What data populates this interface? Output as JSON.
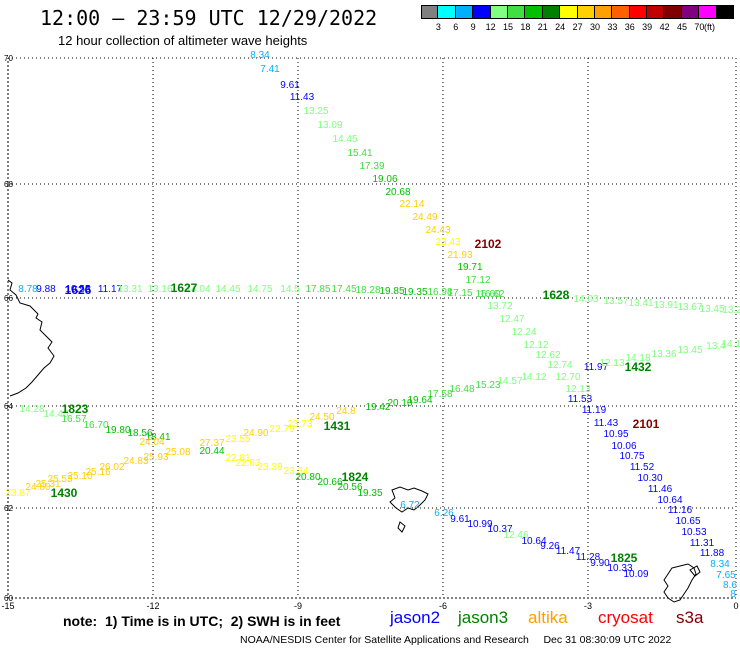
{
  "header": {
    "title": "12:00 – 23:59 UTC 12/29/2022",
    "subtitle": "12 hour collection of altimeter wave heights"
  },
  "colorbar": {
    "unit": "(ft)",
    "colors": [
      "#808080",
      "#00ffff",
      "#00b0ff",
      "#0000ff",
      "#80ff80",
      "#40e040",
      "#00c000",
      "#008000",
      "#ffff00",
      "#ffd000",
      "#ffa000",
      "#ff6000",
      "#ff0000",
      "#c00000",
      "#800000",
      "#800080",
      "#ff00ff",
      "#000000"
    ],
    "labels": [
      "3",
      "6",
      "9",
      "12",
      "15",
      "18",
      "21",
      "24",
      "27",
      "30",
      "33",
      "36",
      "39",
      "42",
      "45",
      "70"
    ]
  },
  "axes": {
    "lat_labels": [
      "70",
      "68",
      "66",
      "64",
      "62",
      "60"
    ],
    "lon_labels": [
      "-15",
      "-12",
      "-9",
      "-6",
      "-3",
      "0"
    ]
  },
  "tracks": [
    {
      "id": "t2102",
      "time": "2102",
      "time_color": "#800000",
      "points": [
        {
          "v": "8.34",
          "c": "#00b0ff"
        },
        {
          "v": "7.41",
          "c": "#00b0ff"
        },
        {
          "v": "9.61",
          "c": "#0000ff"
        },
        {
          "v": "11.43",
          "c": "#0000ff"
        },
        {
          "v": "13.25",
          "c": "#80ff80"
        },
        {
          "v": "13.09",
          "c": "#80ff80"
        },
        {
          "v": "14.45",
          "c": "#80ff80"
        },
        {
          "v": "15.41",
          "c": "#40e040"
        },
        {
          "v": "17.39",
          "c": "#40e040"
        },
        {
          "v": "19.06",
          "c": "#00c000"
        },
        {
          "v": "20.68",
          "c": "#00c000"
        },
        {
          "v": "22.14",
          "c": "#ffd000"
        },
        {
          "v": "24.49",
          "c": "#ffd000"
        },
        {
          "v": "24.43",
          "c": "#ffd000"
        },
        {
          "v": "23.43",
          "c": "#ffff00"
        },
        {
          "v": "21.93",
          "c": "#ffd000"
        },
        {
          "v": "19.71",
          "c": "#00c000"
        },
        {
          "v": "17.12",
          "c": "#40e040"
        },
        {
          "v": "16.60",
          "c": "#40e040"
        },
        {
          "v": "13.72",
          "c": "#80ff80"
        },
        {
          "v": "12.47",
          "c": "#80ff80"
        },
        {
          "v": "12.24",
          "c": "#80ff80"
        },
        {
          "v": "12.12",
          "c": "#80ff80"
        },
        {
          "v": "12.62",
          "c": "#80ff80"
        },
        {
          "v": "12.74",
          "c": "#80ff80"
        },
        {
          "v": "12.70",
          "c": "#80ff80"
        },
        {
          "v": "12.13",
          "c": "#80ff80"
        }
      ]
    },
    {
      "id": "t2101",
      "time": "2101",
      "time_color": "#800000",
      "points": [
        {
          "v": "11.53",
          "c": "#0000ff"
        },
        {
          "v": "11.19",
          "c": "#0000ff"
        },
        {
          "v": "11.43",
          "c": "#0000ff"
        },
        {
          "v": "10.95",
          "c": "#0000ff"
        },
        {
          "v": "10.06",
          "c": "#0000ff"
        },
        {
          "v": "10.75",
          "c": "#0000ff"
        },
        {
          "v": "11.52",
          "c": "#0000ff"
        },
        {
          "v": "10.30",
          "c": "#0000ff"
        },
        {
          "v": "11.46",
          "c": "#0000ff"
        },
        {
          "v": "10.64",
          "c": "#0000ff"
        },
        {
          "v": "11.16",
          "c": "#0000ff"
        },
        {
          "v": "10.65",
          "c": "#0000ff"
        },
        {
          "v": "10.53",
          "c": "#0000ff"
        },
        {
          "v": "11.31",
          "c": "#0000ff"
        },
        {
          "v": "11.88",
          "c": "#0000ff"
        },
        {
          "v": "8.34",
          "c": "#00b0ff"
        },
        {
          "v": "7.65",
          "c": "#00b0ff"
        },
        {
          "v": "8.6",
          "c": "#00b0ff"
        },
        {
          "v": "8",
          "c": "#00b0ff"
        }
      ]
    },
    {
      "id": "t1626",
      "time": "1626",
      "time_color": "#0000ff",
      "points": [
        {
          "v": "8.78",
          "c": "#00b0ff"
        },
        {
          "v": "9.88",
          "c": "#0000ff"
        },
        {
          "v": "10.55",
          "c": "#0000ff"
        },
        {
          "v": "11.17",
          "c": "#0000ff"
        }
      ]
    },
    {
      "id": "t1627",
      "time": "1627",
      "time_color": "#008000",
      "points": [
        {
          "v": "13.31",
          "c": "#80ff80"
        },
        {
          "v": "13.16",
          "c": "#80ff80"
        },
        {
          "v": "14.04",
          "c": "#80ff80"
        },
        {
          "v": "14.45",
          "c": "#80ff80"
        },
        {
          "v": "14.75",
          "c": "#80ff80"
        },
        {
          "v": "14.5",
          "c": "#80ff80"
        },
        {
          "v": "17.85",
          "c": "#40e040"
        },
        {
          "v": "17.45",
          "c": "#40e040"
        },
        {
          "v": "18.28",
          "c": "#40e040"
        },
        {
          "v": "19.85",
          "c": "#00c000"
        },
        {
          "v": "19.35",
          "c": "#00c000"
        },
        {
          "v": "16.98",
          "c": "#40e040"
        },
        {
          "v": "17.15",
          "c": "#40e040"
        },
        {
          "v": "16.62",
          "c": "#40e040"
        }
      ]
    },
    {
      "id": "t1628",
      "time": "1628",
      "time_color": "#008000",
      "points": [
        {
          "v": "14.03",
          "c": "#80ff80"
        },
        {
          "v": "13.57",
          "c": "#80ff80"
        },
        {
          "v": "13.41",
          "c": "#80ff80"
        },
        {
          "v": "13.91",
          "c": "#80ff80"
        },
        {
          "v": "13.67",
          "c": "#80ff80"
        },
        {
          "v": "13.45",
          "c": "#80ff80"
        },
        {
          "v": "13.2",
          "c": "#80ff80"
        }
      ]
    },
    {
      "id": "t1432",
      "time": "1432",
      "time_color": "#008000",
      "points": [
        {
          "v": "11.97",
          "c": "#0000ff"
        },
        {
          "v": "12.13",
          "c": "#80ff80"
        },
        {
          "v": "14.18",
          "c": "#80ff80"
        },
        {
          "v": "13.36",
          "c": "#80ff80"
        },
        {
          "v": "13.45",
          "c": "#80ff80"
        },
        {
          "v": "13.4",
          "c": "#80ff80"
        },
        {
          "v": "14.10",
          "c": "#80ff80"
        },
        {
          "v": "14.12",
          "c": "#80ff80"
        },
        {
          "v": "14.57",
          "c": "#80ff80"
        },
        {
          "v": "15.23",
          "c": "#40e040"
        },
        {
          "v": "16.48",
          "c": "#40e040"
        },
        {
          "v": "17.58",
          "c": "#40e040"
        },
        {
          "v": "19.64",
          "c": "#00c000"
        },
        {
          "v": "20.10",
          "c": "#00c000"
        }
      ]
    },
    {
      "id": "t1823",
      "time": "1823",
      "time_color": "#008000",
      "points": [
        {
          "v": "14.28",
          "c": "#80ff80"
        },
        {
          "v": "14.40",
          "c": "#80ff80"
        },
        {
          "v": "16.57",
          "c": "#40e040"
        },
        {
          "v": "16.70",
          "c": "#40e040"
        },
        {
          "v": "19.80",
          "c": "#00c000"
        },
        {
          "v": "18.56",
          "c": "#00c000"
        },
        {
          "v": "18.41",
          "c": "#00c000"
        }
      ]
    },
    {
      "id": "t1431",
      "time": "1431",
      "time_color": "#008000",
      "points": [
        {
          "v": "19.42",
          "c": "#00c000"
        },
        {
          "v": "24.8",
          "c": "#ffd000"
        },
        {
          "v": "24.50",
          "c": "#ffd000"
        },
        {
          "v": "23.73",
          "c": "#ffff00"
        },
        {
          "v": "22.79",
          "c": "#ffff00"
        },
        {
          "v": "24.90",
          "c": "#ffd000"
        },
        {
          "v": "23.55",
          "c": "#ffff00"
        },
        {
          "v": "27.37",
          "c": "#ffd000"
        },
        {
          "v": "20.44",
          "c": "#00c000"
        },
        {
          "v": "25.08",
          "c": "#ffd000"
        },
        {
          "v": "24.04",
          "c": "#ffd000"
        }
      ]
    },
    {
      "id": "t1430",
      "time": "1430",
      "time_color": "#008000",
      "points": [
        {
          "v": "23.87",
          "c": "#ffff00"
        },
        {
          "v": "24.80",
          "c": "#ffd000"
        },
        {
          "v": "25.31",
          "c": "#ffd000"
        },
        {
          "v": "25.53",
          "c": "#ffd000"
        },
        {
          "v": "25.10",
          "c": "#ffd000"
        },
        {
          "v": "25.16",
          "c": "#ffd000"
        },
        {
          "v": "26.02",
          "c": "#ffd000"
        },
        {
          "v": "24.83",
          "c": "#ffd000"
        },
        {
          "v": "25.93",
          "c": "#ffd000"
        }
      ]
    },
    {
      "id": "t1824",
      "time": "1824",
      "time_color": "#008000",
      "points": [
        {
          "v": "22.81",
          "c": "#ffff00"
        },
        {
          "v": "22.63",
          "c": "#ffff00"
        },
        {
          "v": "23.39",
          "c": "#ffff00"
        },
        {
          "v": "23.34",
          "c": "#ffff00"
        },
        {
          "v": "20.80",
          "c": "#00c000"
        },
        {
          "v": "20.66",
          "c": "#00c000"
        },
        {
          "v": "20.56",
          "c": "#00c000"
        },
        {
          "v": "19.35",
          "c": "#00c000"
        },
        {
          "v": "6.72",
          "c": "#00b0ff"
        }
      ]
    },
    {
      "id": "t1825",
      "time": "1825",
      "time_color": "#008000",
      "points": [
        {
          "v": "6.26",
          "c": "#00b0ff"
        },
        {
          "v": "9.61",
          "c": "#0000ff"
        },
        {
          "v": "10.99",
          "c": "#0000ff"
        },
        {
          "v": "10.37",
          "c": "#0000ff"
        },
        {
          "v": "12.46",
          "c": "#80ff80"
        },
        {
          "v": "10.64",
          "c": "#0000ff"
        },
        {
          "v": "9.26",
          "c": "#0000ff"
        },
        {
          "v": "11.47",
          "c": "#0000ff"
        },
        {
          "v": "11.28",
          "c": "#0000ff"
        },
        {
          "v": "9.90",
          "c": "#0000ff"
        },
        {
          "v": "10.33",
          "c": "#0000ff"
        },
        {
          "v": "10.09",
          "c": "#0000ff"
        }
      ]
    }
  ],
  "legend": {
    "note": "note:  1) Time is in UTC;  2) SWH is in feet",
    "satellites": [
      {
        "name": "jason2",
        "color": "#0000ff"
      },
      {
        "name": "jason3",
        "color": "#008000"
      },
      {
        "name": "altika",
        "color": "#ffa000"
      },
      {
        "name": "cryosat",
        "color": "#ff0000"
      },
      {
        "name": "s3a",
        "color": "#800000"
      }
    ]
  },
  "footer": "NOAA/NESDIS Center for Satellite Applications and Research     Dec 31 08:30:09 UTC 2022"
}
